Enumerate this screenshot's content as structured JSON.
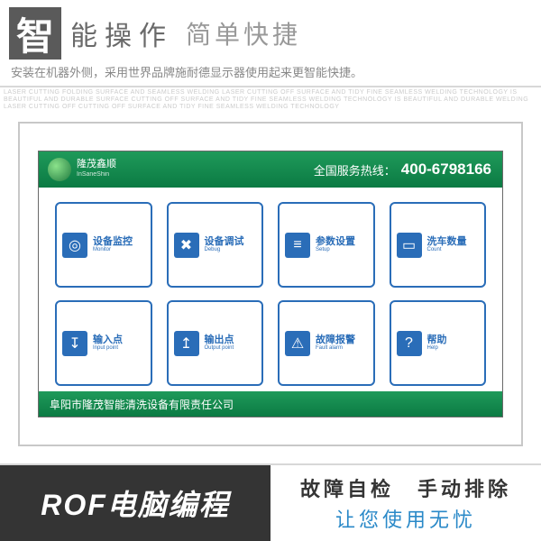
{
  "header": {
    "big_char": "智",
    "title1": "能操作",
    "title2": "简单快捷",
    "subtitle": "安装在机器外侧，采用世界品牌施耐德显示器使用起来更智能快捷。",
    "small_print": "LASER CUTTING FOLDING SURFACE AND SEAMLESS WELDING LASER CUTTING OFF SURFACE AND TIDY FINE SEAMLESS WELDING TECHNOLOGY IS BEAUTIFUL AND DURABLE SURFACE CUTTING OFF SURFACE AND TIDY FINE SEAMLESS WELDING TECHNOLOGY IS BEAUTIFUL AND DURABLE WELDING LASER CUTTING OFF CUTTING OFF SURFACE AND TIDY FINE SEAMLESS WELDING TECHNOLOGY"
  },
  "hmi": {
    "brand_top": "隆茂鑫顺",
    "brand_bottom": "InSaneShin",
    "hotline_label": "全国服务热线：",
    "hotline_number": "400-6798166",
    "footer": "阜阳市隆茂智能清洗设备有限责任公司",
    "buttons": [
      {
        "cn": "设备监控",
        "en": "Monitor",
        "glyph": "◎"
      },
      {
        "cn": "设备调试",
        "en": "Debug",
        "glyph": "✖"
      },
      {
        "cn": "参数设置",
        "en": "Setup",
        "glyph": "≡"
      },
      {
        "cn": "洗车数量",
        "en": "Count",
        "glyph": "▭"
      },
      {
        "cn": "输入点",
        "en": "Input point",
        "glyph": "↧"
      },
      {
        "cn": "输出点",
        "en": "Output point",
        "glyph": "↥"
      },
      {
        "cn": "故障报警",
        "en": "Fault alarm",
        "glyph": "⚠"
      },
      {
        "cn": "帮助",
        "en": "Help",
        "glyph": "?"
      }
    ],
    "colors": {
      "header_bg": "#1f9a5a",
      "button_border": "#2a6db8"
    }
  },
  "bottom": {
    "left": "ROF电脑编程",
    "right_line1": "故障自检　手动排除",
    "right_line2": "让您使用无忧"
  }
}
